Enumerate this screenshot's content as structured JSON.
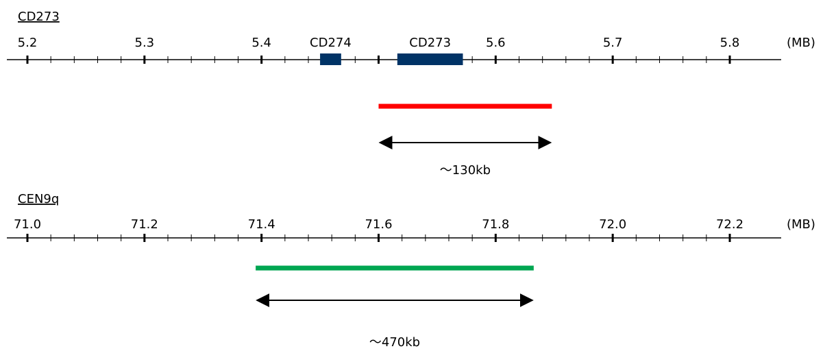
{
  "panels": [
    {
      "id": "cd273",
      "title": "CD273",
      "ticks": [
        "5.2",
        "5.3",
        "5.4",
        "5.5",
        "5.6",
        "5.7",
        "5.8"
      ],
      "tick_labels_shown": [
        "5.2",
        "5.3",
        "5.4",
        "",
        "5.6",
        "5.7",
        "5.8"
      ],
      "axis_min": 5.2,
      "axis_max": 5.8,
      "unit": "(MB)",
      "genes": [
        {
          "name": "CD274",
          "start": 5.45,
          "end": 5.468,
          "color": "#003366"
        },
        {
          "name": "CD273",
          "start": 5.516,
          "end": 5.572,
          "color": "#003366"
        }
      ],
      "probe": {
        "start": 5.5,
        "end": 5.648,
        "color": "#ff0000"
      },
      "span_label": "～130kb"
    },
    {
      "id": "cen9q",
      "title": "CEN9q",
      "ticks": [
        "71.0",
        "71.2",
        "71.4",
        "71.6",
        "71.8",
        "72.0",
        "72.2"
      ],
      "tick_labels_shown": [
        "71.0",
        "71.2",
        "71.4",
        "71.6",
        "71.8",
        "72.0",
        "72.2"
      ],
      "axis_min": 71.0,
      "axis_max": 72.2,
      "unit": "(MB)",
      "genes": [],
      "probe": {
        "start": 71.39,
        "end": 71.865,
        "color": "#00a651"
      },
      "span_label": "～470kb"
    }
  ]
}
